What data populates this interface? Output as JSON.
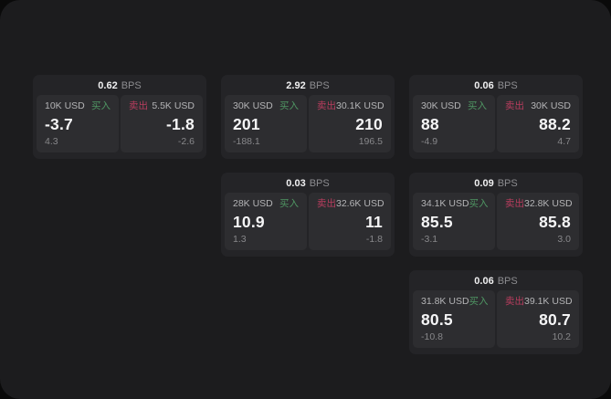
{
  "labels": {
    "bps_unit": "BPS",
    "buy": "买入",
    "sell": "卖出"
  },
  "colors": {
    "surface": "#1c1c1e",
    "card": "#242427",
    "panel": "#2d2d30",
    "buy_green": "#4f9663",
    "sell_red": "#b83d5e"
  },
  "cards": [
    {
      "bps": "0.62",
      "col": 1,
      "row": 1,
      "buy": {
        "size": "10K USD",
        "price": "-3.7",
        "delta": "4.3"
      },
      "sell": {
        "size": "5.5K USD",
        "price": "-1.8",
        "delta": "-2.6"
      }
    },
    {
      "bps": "2.92",
      "col": 2,
      "row": 1,
      "buy": {
        "size": "30K USD",
        "price": "201",
        "delta": "-188.1"
      },
      "sell": {
        "size": "30.1K USD",
        "price": "210",
        "delta": "196.5"
      }
    },
    {
      "bps": "0.06",
      "col": 3,
      "row": 1,
      "buy": {
        "size": "30K USD",
        "price": "88",
        "delta": "-4.9"
      },
      "sell": {
        "size": "30K USD",
        "price": "88.2",
        "delta": "4.7"
      }
    },
    {
      "bps": "0.03",
      "col": 2,
      "row": 2,
      "buy": {
        "size": "28K USD",
        "price": "10.9",
        "delta": "1.3"
      },
      "sell": {
        "size": "32.6K USD",
        "price": "11",
        "delta": "-1.8"
      }
    },
    {
      "bps": "0.09",
      "col": 3,
      "row": 2,
      "buy": {
        "size": "34.1K USD",
        "price": "85.5",
        "delta": "-3.1"
      },
      "sell": {
        "size": "32.8K USD",
        "price": "85.8",
        "delta": "3.0"
      }
    },
    {
      "bps": "0.06",
      "col": 3,
      "row": 3,
      "buy": {
        "size": "31.8K USD",
        "price": "80.5",
        "delta": "-10.8"
      },
      "sell": {
        "size": "39.1K USD",
        "price": "80.7",
        "delta": "10.2"
      }
    }
  ]
}
